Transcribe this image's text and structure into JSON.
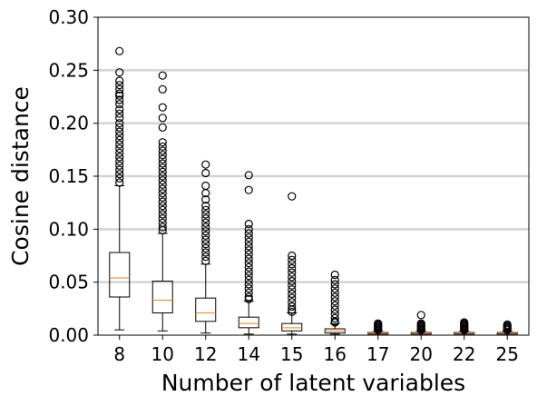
{
  "chart_data": {
    "type": "boxplot",
    "title": "",
    "xlabel": "Number of latent variables",
    "ylabel": "Cosine distance",
    "ylim": [
      0,
      0.3
    ],
    "yticks": [
      "0.00",
      "0.05",
      "0.10",
      "0.15",
      "0.20",
      "0.25",
      "0.30"
    ],
    "grid": "horizontal",
    "colors": {
      "box": "#000000",
      "median": "#ff7f0e",
      "grid": "#d3d3d3",
      "flier": "#000000"
    },
    "boxes": [
      {
        "category": "8",
        "whisker_low": 0.005,
        "q1": 0.036,
        "median": 0.054,
        "q3": 0.078,
        "whisker_high": 0.141,
        "outliers": [
          0.268,
          0.248,
          0.24,
          0.236,
          0.232,
          0.228,
          0.226,
          0.222,
          0.218,
          0.213,
          0.209,
          0.205,
          0.2,
          0.196,
          0.192,
          0.188,
          0.184,
          0.18,
          0.176,
          0.172,
          0.168,
          0.164,
          0.16,
          0.156,
          0.152,
          0.148,
          0.144
        ]
      },
      {
        "category": "10",
        "whisker_low": 0.004,
        "q1": 0.021,
        "median": 0.033,
        "q3": 0.051,
        "whisker_high": 0.096,
        "outliers": [
          0.245,
          0.232,
          0.215,
          0.205,
          0.196,
          0.182,
          0.178,
          0.174,
          0.17,
          0.166,
          0.162,
          0.158,
          0.154,
          0.15,
          0.146,
          0.142,
          0.138,
          0.134,
          0.13,
          0.126,
          0.122,
          0.118,
          0.114,
          0.11,
          0.106,
          0.102,
          0.099
        ]
      },
      {
        "category": "12",
        "whisker_low": 0.002,
        "q1": 0.013,
        "median": 0.021,
        "q3": 0.035,
        "whisker_high": 0.067,
        "outliers": [
          0.161,
          0.153,
          0.141,
          0.134,
          0.128,
          0.122,
          0.118,
          0.114,
          0.11,
          0.106,
          0.102,
          0.098,
          0.094,
          0.09,
          0.086,
          0.082,
          0.078,
          0.074,
          0.07
        ]
      },
      {
        "category": "14",
        "whisker_low": 0.001,
        "q1": 0.007,
        "median": 0.011,
        "q3": 0.017,
        "whisker_high": 0.032,
        "outliers": [
          0.151,
          0.137,
          0.105,
          0.1,
          0.096,
          0.092,
          0.088,
          0.084,
          0.08,
          0.076,
          0.072,
          0.068,
          0.064,
          0.06,
          0.056,
          0.052,
          0.048,
          0.044,
          0.04,
          0.036,
          0.034
        ]
      },
      {
        "category": "15",
        "whisker_low": 0.001,
        "q1": 0.004,
        "median": 0.007,
        "q3": 0.011,
        "whisker_high": 0.021,
        "outliers": [
          0.131,
          0.075,
          0.071,
          0.067,
          0.063,
          0.059,
          0.055,
          0.051,
          0.047,
          0.043,
          0.039,
          0.035,
          0.031,
          0.027,
          0.024,
          0.022
        ]
      },
      {
        "category": "16",
        "whisker_low": 0.001,
        "q1": 0.002,
        "median": 0.004,
        "q3": 0.006,
        "whisker_high": 0.011,
        "outliers": [
          0.057,
          0.052,
          0.048,
          0.044,
          0.04,
          0.036,
          0.032,
          0.028,
          0.024,
          0.02,
          0.016,
          0.013,
          0.012
        ]
      },
      {
        "category": "17",
        "whisker_low": 0.0,
        "q1": 0.001,
        "median": 0.002,
        "q3": 0.0025,
        "whisker_high": 0.004,
        "outliers": [
          0.011,
          0.01,
          0.009,
          0.008,
          0.007,
          0.006,
          0.005
        ]
      },
      {
        "category": "20",
        "whisker_low": 0.0,
        "q1": 0.001,
        "median": 0.002,
        "q3": 0.0025,
        "whisker_high": 0.004,
        "outliers": [
          0.019,
          0.011,
          0.01,
          0.009,
          0.008,
          0.007,
          0.006,
          0.005
        ]
      },
      {
        "category": "22",
        "whisker_low": 0.0,
        "q1": 0.001,
        "median": 0.002,
        "q3": 0.0025,
        "whisker_high": 0.004,
        "outliers": [
          0.012,
          0.011,
          0.01,
          0.009,
          0.008,
          0.007,
          0.006,
          0.005
        ]
      },
      {
        "category": "25",
        "whisker_low": 0.0,
        "q1": 0.001,
        "median": 0.002,
        "q3": 0.0025,
        "whisker_high": 0.004,
        "outliers": [
          0.01,
          0.009,
          0.008,
          0.007,
          0.006,
          0.005
        ]
      }
    ]
  }
}
